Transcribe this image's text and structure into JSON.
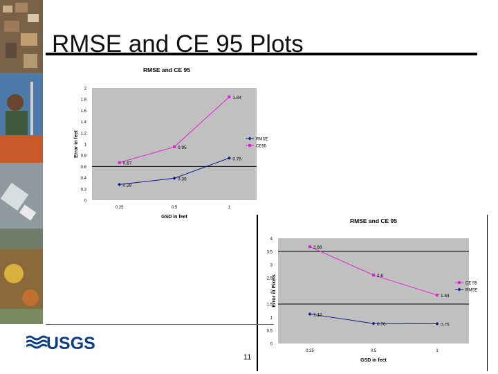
{
  "slide": {
    "title": "RMSE and CE 95 Plots",
    "page_number": "11",
    "logo_text": "USGS"
  },
  "colors": {
    "rmse": "#0a1a8a",
    "ce95": "#e020d0",
    "plot_bg": "#c0c0c0",
    "gridline": "#000000"
  },
  "chart_data": [
    {
      "type": "line",
      "title": "RMSE and CE 95",
      "xlabel": "GSD in feet",
      "ylabel": "Error in feet",
      "categories": [
        "0.25",
        "0.5",
        "1"
      ],
      "ylim": [
        0,
        2
      ],
      "yticks": [
        "0",
        "0.2",
        "0.4",
        "0.6",
        "0.8",
        "1",
        "1.2",
        "1.4",
        "1.6",
        "1.8",
        "2"
      ],
      "gridlines": [
        0.6
      ],
      "legend_position": "right",
      "series": [
        {
          "name": "RMSE",
          "color": "#0a1a8a",
          "marker": "diamond",
          "values": [
            0.28,
            0.39,
            0.75
          ],
          "labels": [
            "0.28",
            "0.39",
            "0.75"
          ]
        },
        {
          "name": "CE95",
          "color": "#e020d0",
          "marker": "square",
          "values": [
            0.67,
            0.95,
            1.84
          ],
          "labels": [
            "0.67",
            "0.95",
            "1.84"
          ]
        }
      ]
    },
    {
      "type": "line",
      "title": "RMSE and CE 95",
      "xlabel": "GSD in feet",
      "ylabel": "Error in Pixels",
      "categories": [
        "0.25",
        "0.5",
        "1"
      ],
      "ylim": [
        0,
        4
      ],
      "yticks": [
        "0",
        "0.5",
        "1",
        "1.5",
        "2",
        "2.5",
        "3",
        "3.5",
        "4"
      ],
      "gridlines": [
        1.5,
        3.5
      ],
      "legend_position": "right",
      "series": [
        {
          "name": "CE 95",
          "color": "#e020d0",
          "marker": "square",
          "values": [
            3.68,
            2.6,
            1.84
          ],
          "labels": [
            "3.68",
            "2.6",
            "1.84"
          ]
        },
        {
          "name": "RMSE",
          "color": "#0a1a8a",
          "marker": "diamond",
          "values": [
            1.12,
            0.76,
            0.75
          ],
          "labels": [
            "1.12",
            "0.76",
            "0.75"
          ]
        }
      ]
    }
  ]
}
